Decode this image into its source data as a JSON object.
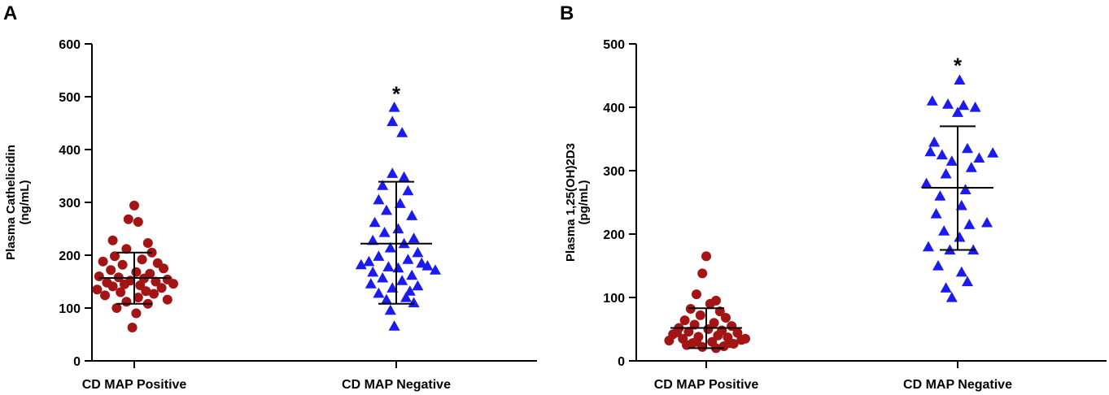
{
  "chart_data": [
    {
      "panel": "A",
      "type": "scatter",
      "ylabel": [
        "Plasma Cathelicidin",
        "(ng/mL)"
      ],
      "xlabel": "",
      "ylim": [
        0,
        600
      ],
      "yticks": [
        "0",
        "100",
        "200",
        "300",
        "400",
        "500",
        "600"
      ],
      "categories": [
        "CD MAP Positive",
        "CD MAP Negative"
      ],
      "groups": [
        {
          "name": "CD MAP Positive",
          "color": "#a31515",
          "marker": "circle",
          "mean": 157,
          "sd_low": 108,
          "sd_high": 205,
          "values": [
            294,
            268,
            263,
            228,
            223,
            212,
            205,
            198,
            192,
            188,
            185,
            182,
            175,
            172,
            168,
            165,
            160,
            158,
            156,
            154,
            152,
            150,
            148,
            146,
            145,
            143,
            141,
            138,
            135,
            132,
            130,
            127,
            124,
            120,
            116,
            112,
            108,
            100,
            90,
            63
          ],
          "offsets": [
            0.0,
            -0.15,
            0.1,
            -0.55,
            0.35,
            -0.2,
            0.45,
            -0.5,
            0.2,
            -0.8,
            0.6,
            -0.3,
            0.75,
            -0.6,
            0.05,
            0.4,
            -0.9,
            -0.4,
            0.25,
            0.85,
            -0.1,
            0.55,
            -0.7,
            1.0,
            -0.25,
            0.15,
            -0.55,
            0.7,
            -0.95,
            0.3,
            -0.35,
            0.5,
            -0.75,
            0.1,
            0.85,
            -0.2,
            0.35,
            -0.45,
            0.05,
            -0.05
          ]
        },
        {
          "name": "CD MAP Negative",
          "color": "#1b1bf0",
          "marker": "triangle",
          "mean": 222,
          "sd_low": 108,
          "sd_high": 339,
          "values": [
            480,
            453,
            432,
            355,
            348,
            332,
            322,
            305,
            298,
            285,
            275,
            262,
            250,
            243,
            232,
            228,
            222,
            214,
            205,
            198,
            192,
            188,
            185,
            182,
            180,
            178,
            176,
            172,
            168,
            162,
            157,
            152,
            146,
            142,
            138,
            132,
            128,
            120,
            116,
            110,
            96,
            66
          ],
          "offsets": [
            -0.05,
            -0.1,
            0.15,
            -0.1,
            0.2,
            -0.35,
            0.3,
            -0.45,
            0.1,
            -0.25,
            0.4,
            -0.55,
            0.05,
            -0.3,
            0.45,
            -0.6,
            0.2,
            -0.15,
            0.55,
            -0.45,
            0.3,
            -0.7,
            0.65,
            -0.9,
            0.8,
            -0.2,
            0.05,
            1.0,
            -0.6,
            0.4,
            -0.35,
            0.15,
            -0.65,
            0.55,
            -0.1,
            0.35,
            -0.45,
            0.25,
            -0.25,
            0.45,
            -0.15,
            -0.05
          ]
        }
      ],
      "annotation": {
        "text": "*",
        "group": "CD MAP Negative",
        "y": 510
      }
    },
    {
      "panel": "B",
      "type": "scatter",
      "ylabel": [
        "Plasma 1,25(OH)2D3",
        "(pg/mL)"
      ],
      "xlabel": "",
      "ylim": [
        0,
        500
      ],
      "yticks": [
        "0",
        "100",
        "200",
        "300",
        "400",
        "500"
      ],
      "categories": [
        "CD MAP Positive",
        "CD MAP Negative"
      ],
      "groups": [
        {
          "name": "CD MAP Positive",
          "color": "#a31515",
          "marker": "circle",
          "mean": 52,
          "sd_low": 20,
          "sd_high": 83,
          "values": [
            165,
            138,
            105,
            95,
            90,
            82,
            78,
            72,
            68,
            64,
            60,
            57,
            55,
            52,
            50,
            48,
            46,
            44,
            42,
            40,
            38,
            37,
            35,
            33,
            32,
            30,
            28,
            27,
            25,
            23,
            22,
            20,
            35,
            45,
            30,
            28
          ],
          "offsets": [
            0.0,
            -0.1,
            -0.25,
            0.25,
            0.1,
            -0.4,
            0.35,
            -0.15,
            0.5,
            -0.55,
            0.2,
            -0.3,
            0.65,
            -0.7,
            0.05,
            0.4,
            -0.45,
            0.8,
            -0.85,
            0.3,
            -0.2,
            0.55,
            -0.6,
            0.9,
            -0.95,
            0.15,
            -0.35,
            0.7,
            -0.5,
            0.45,
            -0.1,
            0.25,
            1.0,
            -0.75,
            -0.25,
            0.6
          ],
          "note": "offsets are jitter in half-band units"
        },
        {
          "name": "CD MAP Negative",
          "color": "#1b1bf0",
          "marker": "triangle",
          "mean": 273,
          "sd_low": 175,
          "sd_high": 370,
          "values": [
            443,
            410,
            405,
            403,
            400,
            392,
            345,
            335,
            330,
            328,
            325,
            320,
            315,
            305,
            295,
            280,
            270,
            260,
            245,
            232,
            218,
            215,
            205,
            195,
            180,
            175,
            175,
            150,
            140,
            125,
            115,
            100
          ],
          "offsets": [
            0.05,
            -0.65,
            -0.25,
            0.15,
            0.45,
            0.0,
            -0.6,
            0.25,
            -0.7,
            0.9,
            -0.4,
            0.55,
            -0.15,
            0.35,
            -0.3,
            -0.8,
            0.2,
            -0.45,
            0.1,
            -0.55,
            0.75,
            0.3,
            -0.35,
            0.05,
            -0.75,
            -0.2,
            0.4,
            -0.5,
            0.1,
            0.25,
            -0.3,
            -0.15
          ]
        }
      ],
      "annotation": {
        "text": "*",
        "group": "CD MAP Negative",
        "y": 470
      }
    }
  ],
  "colors": {
    "positive": "#a31515",
    "negative": "#1b1bf0",
    "axis": "#000000"
  }
}
